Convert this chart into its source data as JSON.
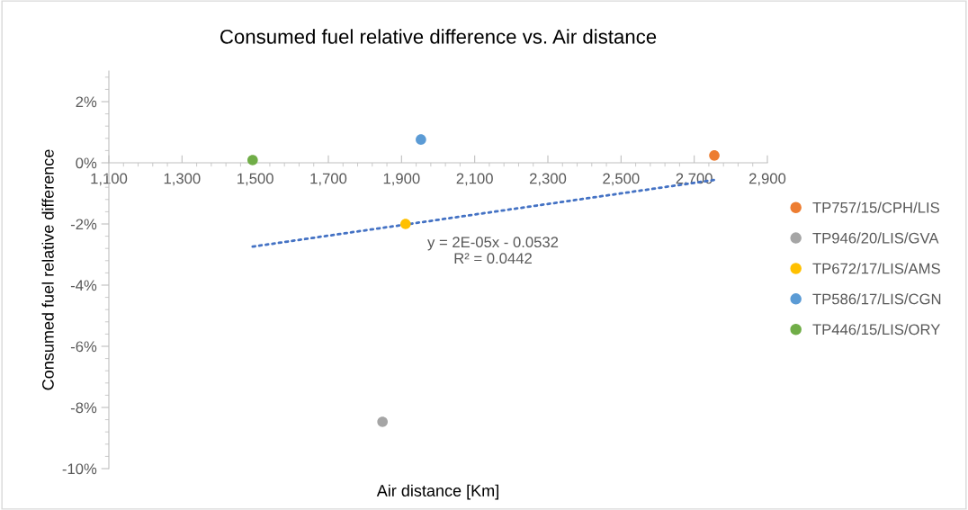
{
  "chart_data": {
    "type": "scatter",
    "title": "Consumed fuel relative difference vs. Air distance",
    "xlabel": "Air distance [Km]",
    "ylabel": "Consumed fuel relative difference",
    "series": [
      {
        "name": "TP757/15/CPH/LIS",
        "color": "#ed7d31",
        "x": [
          2755
        ],
        "values": [
          0.24
        ]
      },
      {
        "name": "TP946/20/LIS/GVA",
        "color": "#a5a5a5",
        "x": [
          1848
        ],
        "values": [
          -8.47
        ]
      },
      {
        "name": "TP672/17/LIS/AMS",
        "color": "#ffc000",
        "x": [
          1911
        ],
        "values": [
          -2.0
        ]
      },
      {
        "name": "TP586/17/LIS/CGN",
        "color": "#5b9bd5",
        "x": [
          1953
        ],
        "values": [
          0.76
        ]
      },
      {
        "name": "TP446/15/LIS/ORY",
        "color": "#70ad47",
        "x": [
          1493
        ],
        "values": [
          0.09
        ]
      },
      {
        "type": "line",
        "color": "#4472c4",
        "line_style": "dotted",
        "marker": "none",
        "x": [
          1493,
          2755
        ],
        "values": [
          -2.74,
          -0.56
        ]
      }
    ],
    "annotations": [
      "y = 2E-05x - 0.0532\nR² = 0.0442"
    ],
    "marker": "circle",
    "xlim": [
      1100,
      2900
    ],
    "xticks": [
      {
        "value": 1100,
        "label": "1,100"
      },
      {
        "value": 1300,
        "label": "1,300"
      },
      {
        "value": 1500,
        "label": "1,500"
      },
      {
        "value": 1700,
        "label": "1,700"
      },
      {
        "value": 1900,
        "label": "1,900"
      },
      {
        "value": 2100,
        "label": "2,100"
      },
      {
        "value": 2300,
        "label": "2,300"
      },
      {
        "value": 2500,
        "label": "2,500"
      },
      {
        "value": 2700,
        "label": "2,700"
      },
      {
        "value": 2900,
        "label": "2,900"
      }
    ],
    "ylim": [
      -10,
      3
    ],
    "yticks": [
      {
        "value": -10,
        "label": "-10%"
      },
      {
        "value": -8,
        "label": "-8%"
      },
      {
        "value": -6,
        "label": "-6%"
      },
      {
        "value": -4,
        "label": "-4%"
      },
      {
        "value": -2,
        "label": "-2%"
      },
      {
        "value": 0,
        "label": "0%"
      },
      {
        "value": 2,
        "label": "2%"
      }
    ],
    "grid": false,
    "legend": "right"
  }
}
